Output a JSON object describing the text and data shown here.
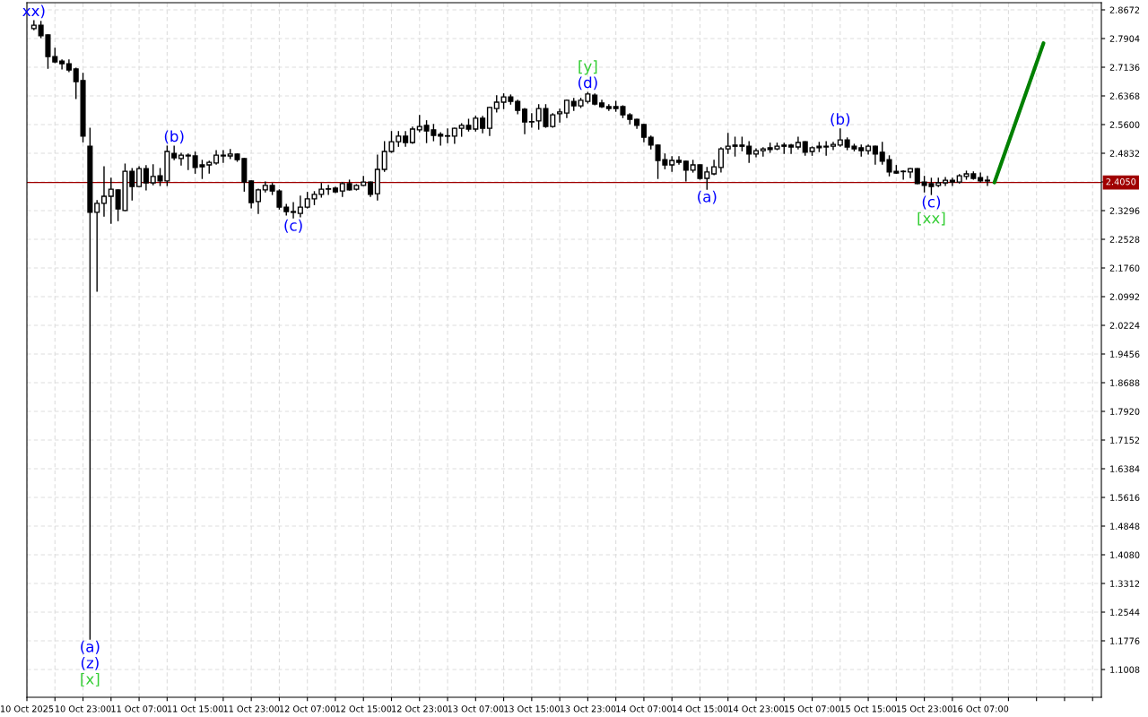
{
  "chart_data": {
    "type": "candlestick",
    "x": [
      "2025-10-10T16:00",
      "2025-10-10T17:00",
      "2025-10-10T18:00",
      "2025-10-10T19:00",
      "2025-10-10T20:00",
      "2025-10-10T21:00",
      "2025-10-10T22:00",
      "2025-10-10T23:00",
      "2025-10-11T00:00",
      "2025-10-11T01:00",
      "2025-10-11T02:00",
      "2025-10-11T03:00",
      "2025-10-11T04:00",
      "2025-10-11T05:00",
      "2025-10-11T06:00",
      "2025-10-11T07:00",
      "2025-10-11T08:00",
      "2025-10-11T09:00",
      "2025-10-11T10:00",
      "2025-10-11T11:00",
      "2025-10-11T12:00",
      "2025-10-11T13:00",
      "2025-10-11T14:00",
      "2025-10-11T15:00",
      "2025-10-11T16:00",
      "2025-10-11T17:00",
      "2025-10-11T18:00",
      "2025-10-11T19:00",
      "2025-10-11T20:00",
      "2025-10-11T21:00",
      "2025-10-11T22:00",
      "2025-10-11T23:00",
      "2025-10-12T00:00",
      "2025-10-12T01:00",
      "2025-10-12T02:00",
      "2025-10-12T03:00",
      "2025-10-12T04:00",
      "2025-10-12T05:00",
      "2025-10-12T06:00",
      "2025-10-12T07:00",
      "2025-10-12T08:00",
      "2025-10-12T09:00",
      "2025-10-12T10:00",
      "2025-10-12T11:00",
      "2025-10-12T12:00",
      "2025-10-12T13:00",
      "2025-10-12T14:00",
      "2025-10-12T15:00",
      "2025-10-12T16:00",
      "2025-10-12T17:00",
      "2025-10-12T18:00",
      "2025-10-12T19:00",
      "2025-10-12T20:00",
      "2025-10-12T21:00",
      "2025-10-12T22:00",
      "2025-10-12T23:00",
      "2025-10-13T00:00",
      "2025-10-13T01:00",
      "2025-10-13T02:00",
      "2025-10-13T03:00",
      "2025-10-13T04:00",
      "2025-10-13T05:00",
      "2025-10-13T06:00",
      "2025-10-13T07:00",
      "2025-10-13T08:00",
      "2025-10-13T09:00",
      "2025-10-13T10:00",
      "2025-10-13T11:00",
      "2025-10-13T12:00",
      "2025-10-13T13:00",
      "2025-10-13T14:00",
      "2025-10-13T15:00",
      "2025-10-13T16:00",
      "2025-10-13T17:00",
      "2025-10-13T18:00",
      "2025-10-13T19:00",
      "2025-10-13T20:00",
      "2025-10-13T21:00",
      "2025-10-13T22:00",
      "2025-10-13T23:00",
      "2025-10-14T00:00",
      "2025-10-14T01:00",
      "2025-10-14T02:00",
      "2025-10-14T03:00",
      "2025-10-14T04:00",
      "2025-10-14T05:00",
      "2025-10-14T06:00",
      "2025-10-14T07:00",
      "2025-10-14T08:00",
      "2025-10-14T09:00",
      "2025-10-14T10:00",
      "2025-10-14T11:00",
      "2025-10-14T12:00",
      "2025-10-14T13:00",
      "2025-10-14T14:00",
      "2025-10-14T15:00",
      "2025-10-14T16:00",
      "2025-10-14T17:00",
      "2025-10-14T18:00",
      "2025-10-14T19:00",
      "2025-10-14T20:00",
      "2025-10-14T21:00",
      "2025-10-14T22:00",
      "2025-10-14T23:00",
      "2025-10-15T00:00",
      "2025-10-15T01:00",
      "2025-10-15T02:00",
      "2025-10-15T03:00",
      "2025-10-15T04:00",
      "2025-10-15T05:00",
      "2025-10-15T06:00",
      "2025-10-15T07:00",
      "2025-10-15T08:00",
      "2025-10-15T09:00",
      "2025-10-15T10:00",
      "2025-10-15T11:00",
      "2025-10-15T12:00",
      "2025-10-15T13:00",
      "2025-10-15T14:00",
      "2025-10-15T15:00",
      "2025-10-15T16:00",
      "2025-10-15T17:00",
      "2025-10-15T18:00",
      "2025-10-15T19:00",
      "2025-10-15T20:00",
      "2025-10-15T21:00",
      "2025-10-15T22:00",
      "2025-10-15T23:00",
      "2025-10-16T00:00",
      "2025-10-16T01:00",
      "2025-10-16T02:00",
      "2025-10-16T03:00",
      "2025-10-16T04:00",
      "2025-10-16T05:00",
      "2025-10-16T06:00",
      "2025-10-16T07:00",
      "2025-10-16T08:00"
    ],
    "ohlc": [
      [
        2.817,
        2.838,
        2.814,
        2.826
      ],
      [
        2.826,
        2.836,
        2.793,
        2.798
      ],
      [
        2.8,
        2.8,
        2.711,
        2.742
      ],
      [
        2.742,
        2.764,
        2.726,
        2.728
      ],
      [
        2.73,
        2.733,
        2.709,
        2.723
      ],
      [
        2.723,
        2.733,
        2.702,
        2.706
      ],
      [
        2.709,
        2.711,
        2.63,
        2.675
      ],
      [
        2.678,
        2.697,
        2.514,
        2.529
      ],
      [
        2.502,
        2.55,
        1.182,
        2.325
      ],
      [
        2.325,
        2.356,
        2.114,
        2.349
      ],
      [
        2.349,
        2.447,
        2.315,
        2.368
      ],
      [
        2.368,
        2.416,
        2.296,
        2.387
      ],
      [
        2.385,
        2.385,
        2.303,
        2.334
      ],
      [
        2.33,
        2.454,
        2.33,
        2.435
      ],
      [
        2.435,
        2.442,
        2.358,
        2.394
      ],
      [
        2.394,
        2.447,
        2.394,
        2.442
      ],
      [
        2.442,
        2.45,
        2.385,
        2.404
      ],
      [
        2.404,
        2.452,
        2.399,
        2.421
      ],
      [
        2.423,
        2.442,
        2.397,
        2.409
      ],
      [
        2.409,
        2.502,
        2.397,
        2.488
      ],
      [
        2.483,
        2.502,
        2.466,
        2.471
      ],
      [
        2.469,
        2.483,
        2.452,
        2.478
      ],
      [
        2.478,
        2.481,
        2.44,
        2.476
      ],
      [
        2.476,
        2.486,
        2.43,
        2.445
      ],
      [
        2.452,
        2.464,
        2.416,
        2.447
      ],
      [
        2.452,
        2.462,
        2.43,
        2.459
      ],
      [
        2.457,
        2.49,
        2.454,
        2.478
      ],
      [
        2.478,
        2.49,
        2.459,
        2.476
      ],
      [
        2.476,
        2.493,
        2.469,
        2.481
      ],
      [
        2.481,
        2.481,
        2.462,
        2.466
      ],
      [
        2.469,
        2.469,
        2.382,
        2.406
      ],
      [
        2.409,
        2.409,
        2.337,
        2.351
      ],
      [
        2.354,
        2.387,
        2.322,
        2.385
      ],
      [
        2.385,
        2.406,
        2.38,
        2.397
      ],
      [
        2.397,
        2.402,
        2.373,
        2.382
      ],
      [
        2.382,
        2.385,
        2.334,
        2.339
      ],
      [
        2.339,
        2.346,
        2.318,
        2.327
      ],
      [
        2.327,
        2.351,
        2.31,
        2.325
      ],
      [
        2.322,
        2.368,
        2.313,
        2.339
      ],
      [
        2.339,
        2.378,
        2.337,
        2.361
      ],
      [
        2.361,
        2.38,
        2.346,
        2.373
      ],
      [
        2.373,
        2.402,
        2.366,
        2.387
      ],
      [
        2.387,
        2.397,
        2.373,
        2.388
      ],
      [
        2.39,
        2.392,
        2.378,
        2.38
      ],
      [
        2.382,
        2.404,
        2.368,
        2.402
      ],
      [
        2.402,
        2.411,
        2.385,
        2.385
      ],
      [
        2.387,
        2.399,
        2.385,
        2.397
      ],
      [
        2.397,
        2.421,
        2.397,
        2.406
      ],
      [
        2.406,
        2.406,
        2.368,
        2.373
      ],
      [
        2.375,
        2.478,
        2.358,
        2.44
      ],
      [
        2.44,
        2.514,
        2.435,
        2.488
      ],
      [
        2.488,
        2.541,
        2.486,
        2.514
      ],
      [
        2.514,
        2.541,
        2.502,
        2.529
      ],
      [
        2.529,
        2.541,
        2.502,
        2.512
      ],
      [
        2.512,
        2.553,
        2.51,
        2.548
      ],
      [
        2.546,
        2.584,
        2.541,
        2.555
      ],
      [
        2.558,
        2.57,
        2.512,
        2.543
      ],
      [
        2.546,
        2.56,
        2.517,
        2.531
      ],
      [
        2.534,
        2.538,
        2.505,
        2.529
      ],
      [
        2.529,
        2.548,
        2.512,
        2.53
      ],
      [
        2.529,
        2.55,
        2.51,
        2.55
      ],
      [
        2.55,
        2.562,
        2.529,
        2.558
      ],
      [
        2.558,
        2.574,
        2.543,
        2.548
      ],
      [
        2.548,
        2.582,
        2.543,
        2.577
      ],
      [
        2.577,
        2.582,
        2.538,
        2.55
      ],
      [
        2.55,
        2.606,
        2.531,
        2.606
      ],
      [
        2.603,
        2.637,
        2.594,
        2.62
      ],
      [
        2.62,
        2.642,
        2.603,
        2.634
      ],
      [
        2.634,
        2.639,
        2.615,
        2.622
      ],
      [
        2.622,
        2.625,
        2.589,
        2.598
      ],
      [
        2.601,
        2.603,
        2.536,
        2.567
      ],
      [
        2.567,
        2.589,
        2.553,
        2.568
      ],
      [
        2.57,
        2.613,
        2.548,
        2.603
      ],
      [
        2.603,
        2.613,
        2.553,
        2.555
      ],
      [
        2.555,
        2.589,
        2.553,
        2.586
      ],
      [
        2.589,
        2.601,
        2.567,
        2.594
      ],
      [
        2.591,
        2.625,
        2.579,
        2.625
      ],
      [
        2.622,
        2.63,
        2.598,
        2.61
      ],
      [
        2.61,
        2.63,
        2.606,
        2.625
      ],
      [
        2.622,
        2.646,
        2.618,
        2.642
      ],
      [
        2.639,
        2.642,
        2.613,
        2.615
      ],
      [
        2.618,
        2.625,
        2.606,
        2.608
      ],
      [
        2.608,
        2.613,
        2.598,
        2.603
      ],
      [
        2.608,
        2.622,
        2.596,
        2.603
      ],
      [
        2.608,
        2.61,
        2.579,
        2.586
      ],
      [
        2.586,
        2.589,
        2.562,
        2.574
      ],
      [
        2.574,
        2.574,
        2.55,
        2.558
      ],
      [
        2.56,
        2.56,
        2.514,
        2.526
      ],
      [
        2.526,
        2.529,
        2.495,
        2.505
      ],
      [
        2.505,
        2.505,
        2.416,
        2.464
      ],
      [
        2.466,
        2.481,
        2.442,
        2.452
      ],
      [
        2.452,
        2.474,
        2.435,
        2.464
      ],
      [
        2.464,
        2.474,
        2.454,
        2.459
      ],
      [
        2.462,
        2.462,
        2.409,
        2.438
      ],
      [
        2.438,
        2.464,
        2.433,
        2.452
      ],
      [
        2.452,
        2.452,
        2.414,
        2.416
      ],
      [
        2.416,
        2.445,
        2.387,
        2.433
      ],
      [
        2.428,
        2.464,
        2.426,
        2.447
      ],
      [
        2.445,
        2.498,
        2.433,
        2.495
      ],
      [
        2.495,
        2.536,
        2.483,
        2.502
      ],
      [
        2.505,
        2.526,
        2.476,
        2.502
      ],
      [
        2.505,
        2.526,
        2.49,
        2.502
      ],
      [
        2.502,
        2.514,
        2.459,
        2.481
      ],
      [
        2.481,
        2.495,
        2.474,
        2.49
      ],
      [
        2.49,
        2.498,
        2.476,
        2.495
      ],
      [
        2.498,
        2.51,
        2.486,
        2.493
      ],
      [
        2.495,
        2.51,
        2.493,
        2.502
      ],
      [
        2.505,
        2.51,
        2.483,
        2.502
      ],
      [
        2.505,
        2.507,
        2.483,
        2.5
      ],
      [
        2.5,
        2.526,
        2.495,
        2.512
      ],
      [
        2.514,
        2.514,
        2.478,
        2.486
      ],
      [
        2.488,
        2.5,
        2.478,
        2.498
      ],
      [
        2.502,
        2.512,
        2.488,
        2.498
      ],
      [
        2.502,
        2.514,
        2.478,
        2.5
      ],
      [
        2.502,
        2.512,
        2.493,
        2.507
      ],
      [
        2.505,
        2.548,
        2.502,
        2.519
      ],
      [
        2.519,
        2.524,
        2.493,
        2.5
      ],
      [
        2.502,
        2.507,
        2.49,
        2.495
      ],
      [
        2.498,
        2.505,
        2.476,
        2.49
      ],
      [
        2.49,
        2.505,
        2.481,
        2.502
      ],
      [
        2.502,
        2.502,
        2.454,
        2.481
      ],
      [
        2.486,
        2.512,
        2.454,
        2.462
      ],
      [
        2.466,
        2.476,
        2.423,
        2.433
      ],
      [
        2.435,
        2.45,
        2.43,
        2.43
      ],
      [
        2.435,
        2.436,
        2.414,
        2.434
      ],
      [
        2.433,
        2.442,
        2.418,
        2.442
      ],
      [
        2.442,
        2.442,
        2.402,
        2.402
      ],
      [
        2.406,
        2.421,
        2.38,
        2.397
      ],
      [
        2.402,
        2.416,
        2.373,
        2.394
      ],
      [
        2.397,
        2.416,
        2.394,
        2.404
      ],
      [
        2.404,
        2.418,
        2.397,
        2.411
      ],
      [
        2.411,
        2.416,
        2.397,
        2.406
      ],
      [
        2.406,
        2.426,
        2.404,
        2.423
      ],
      [
        2.421,
        2.435,
        2.414,
        2.428
      ],
      [
        2.428,
        2.433,
        2.414,
        2.416
      ],
      [
        2.418,
        2.43,
        2.406,
        2.409
      ],
      [
        2.411,
        2.421,
        2.397,
        2.409
      ]
    ],
    "series": [
      {
        "type": "line",
        "color": "#008000",
        "x": [
          "2025-10-16T09:00",
          "2025-10-16T16:00"
        ],
        "values": [
          2.405,
          2.778
        ]
      }
    ],
    "xlim": [
      "2025-10-10T15:00",
      "2025-10-17T00:15"
    ],
    "xticks": [
      {
        "value": "2025-10-10T15:00",
        "label": "10 Oct 2025"
      },
      {
        "value": "2025-10-10T19:00",
        "label": null
      },
      {
        "value": "2025-10-10T23:00",
        "label": "10 Oct 23:00"
      },
      {
        "value": "2025-10-11T03:00",
        "label": null
      },
      {
        "value": "2025-10-11T07:00",
        "label": "11 Oct 07:00"
      },
      {
        "value": "2025-10-11T11:00",
        "label": null
      },
      {
        "value": "2025-10-11T15:00",
        "label": "11 Oct 15:00"
      },
      {
        "value": "2025-10-11T19:00",
        "label": null
      },
      {
        "value": "2025-10-11T23:00",
        "label": "11 Oct 23:00"
      },
      {
        "value": "2025-10-12T03:00",
        "label": null
      },
      {
        "value": "2025-10-12T07:00",
        "label": "12 Oct 07:00"
      },
      {
        "value": "2025-10-12T11:00",
        "label": null
      },
      {
        "value": "2025-10-12T15:00",
        "label": "12 Oct 15:00"
      },
      {
        "value": "2025-10-12T19:00",
        "label": null
      },
      {
        "value": "2025-10-12T23:00",
        "label": "12 Oct 23:00"
      },
      {
        "value": "2025-10-13T03:00",
        "label": null
      },
      {
        "value": "2025-10-13T07:00",
        "label": "13 Oct 07:00"
      },
      {
        "value": "2025-10-13T11:00",
        "label": null
      },
      {
        "value": "2025-10-13T15:00",
        "label": "13 Oct 15:00"
      },
      {
        "value": "2025-10-13T19:00",
        "label": null
      },
      {
        "value": "2025-10-13T23:00",
        "label": "13 Oct 23:00"
      },
      {
        "value": "2025-10-14T03:00",
        "label": null
      },
      {
        "value": "2025-10-14T07:00",
        "label": "14 Oct 07:00"
      },
      {
        "value": "2025-10-14T11:00",
        "label": null
      },
      {
        "value": "2025-10-14T15:00",
        "label": "14 Oct 15:00"
      },
      {
        "value": "2025-10-14T19:00",
        "label": null
      },
      {
        "value": "2025-10-14T23:00",
        "label": "14 Oct 23:00"
      },
      {
        "value": "2025-10-15T03:00",
        "label": null
      },
      {
        "value": "2025-10-15T07:00",
        "label": "15 Oct 07:00"
      },
      {
        "value": "2025-10-15T11:00",
        "label": null
      },
      {
        "value": "2025-10-15T15:00",
        "label": "15 Oct 15:00"
      },
      {
        "value": "2025-10-15T19:00",
        "label": null
      },
      {
        "value": "2025-10-15T23:00",
        "label": "15 Oct 23:00"
      },
      {
        "value": "2025-10-16T03:00",
        "label": null
      },
      {
        "value": "2025-10-16T07:00",
        "label": "16 Oct 07:00"
      },
      {
        "value": "2025-10-16T11:00",
        "label": null
      },
      {
        "value": "2025-10-16T15:00",
        "label": null
      },
      {
        "value": "2025-10-16T19:00",
        "label": null
      },
      {
        "value": "2025-10-16T23:00",
        "label": null
      }
    ],
    "ylim": [
      1.0264,
      2.8864
    ],
    "yticks": [
      2.8672,
      2.7904,
      2.7136,
      2.6368,
      {
        "value": 2.56,
        "label": "2.5600"
      },
      2.4832,
      {
        "value": 2.4064,
        "label": null
      },
      2.3296,
      2.2528,
      {
        "value": 2.176,
        "label": "2.1760"
      },
      2.0992,
      2.0224,
      1.9456,
      1.8688,
      {
        "value": 1.792,
        "label": "1.7920"
      },
      1.7152,
      1.6384,
      1.5616,
      1.4848,
      {
        "value": 1.408,
        "label": "1.4080"
      },
      1.3312,
      1.2544,
      1.1776,
      1.1008
    ],
    "grid": true,
    "ref_lines": [
      {
        "axis": "y",
        "value": 2.405,
        "label": "2.4050",
        "color": "#a00000"
      }
    ],
    "annotations": [
      {
        "text": "xx)",
        "x": "2025-10-10T16:00",
        "y": 2.838
      },
      {
        "text": "(b)",
        "x": "2025-10-11T12:00",
        "y": 2.502
      },
      {
        "text": "(c)",
        "x": "2025-10-12T05:00",
        "y": 2.31
      },
      {
        "text": "(d)",
        "x": "2025-10-13T23:00",
        "y": 2.646
      },
      {
        "text": "[y]",
        "x": "2025-10-13T23:00",
        "y": 2.646
      },
      {
        "text": "(a)",
        "x": "2025-10-14T16:00",
        "y": 2.387
      },
      {
        "text": "(b)",
        "x": "2025-10-15T11:00",
        "y": 2.548
      },
      {
        "text": "(c)",
        "x": "2025-10-16T00:00",
        "y": 2.373
      },
      {
        "text": "[xx]",
        "x": "2025-10-16T00:00",
        "y": 2.373
      },
      {
        "text": "(a)",
        "x": "2025-10-11T00:00",
        "y": 1.182
      },
      {
        "text": "(z)",
        "x": "2025-10-11T00:00",
        "y": 1.182
      },
      {
        "text": "[x]",
        "x": "2025-10-11T00:00",
        "y": 1.182
      }
    ]
  }
}
